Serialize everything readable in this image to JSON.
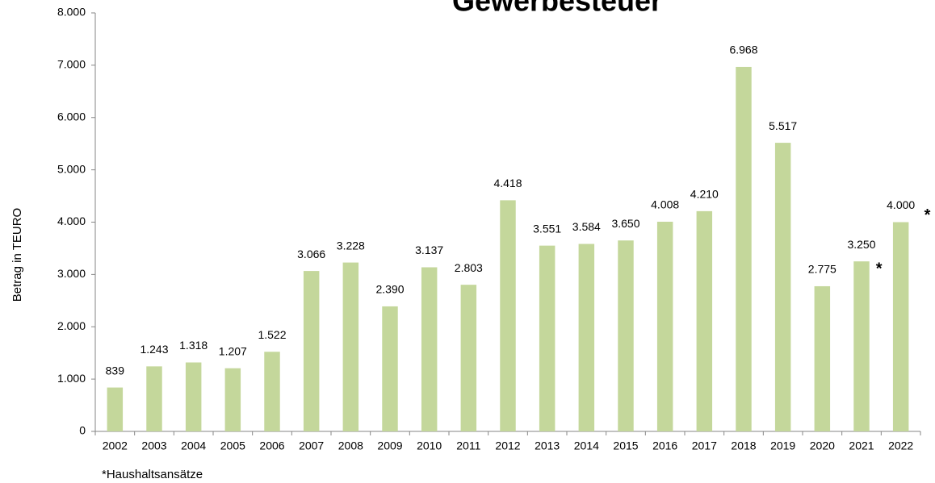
{
  "chart_data": {
    "type": "bar",
    "title": "Gewerbesteuer",
    "y_label": "Betrag in TEURO",
    "footnote": "*Haushaltsansätze",
    "categories": [
      "2002",
      "2003",
      "2004",
      "2005",
      "2006",
      "2007",
      "2008",
      "2009",
      "2010",
      "2011",
      "2012",
      "2013",
      "2014",
      "2015",
      "2016",
      "2017",
      "2018",
      "2019",
      "2020",
      "2021",
      "2022"
    ],
    "values": [
      839,
      1243,
      1318,
      1207,
      1522,
      3066,
      3228,
      2390,
      3137,
      2803,
      4418,
      3551,
      3584,
      3650,
      4008,
      4210,
      6968,
      5517,
      2775,
      3250,
      4000
    ],
    "value_labels": [
      "839",
      "1.243",
      "1.318",
      "1.207",
      "1.522",
      "3.066",
      "3.228",
      "2.390",
      "3.137",
      "2.803",
      "4.418",
      "3.551",
      "3.584",
      "3.650",
      "4.008",
      "4.210",
      "6.968",
      "5.517",
      "2.775",
      "3.250",
      "4.000"
    ],
    "annotations": [
      {
        "category": "2021",
        "text": "*"
      },
      {
        "category": "2022",
        "text": "*"
      }
    ],
    "color": "#c4d79b",
    "ylim": [
      0,
      8000
    ],
    "yticks": [
      0,
      {
        "value": 1000,
        "label": "1.000"
      },
      {
        "value": 2000,
        "label": "2.000"
      },
      {
        "value": 3000,
        "label": "3.000"
      },
      {
        "value": 4000,
        "label": "4.000"
      },
      {
        "value": 5000,
        "label": "5.000"
      },
      {
        "value": 6000,
        "label": "6.000"
      },
      {
        "value": 7000,
        "label": "7.000"
      },
      {
        "value": 8000,
        "label": "8.000"
      }
    ],
    "grid": false
  }
}
